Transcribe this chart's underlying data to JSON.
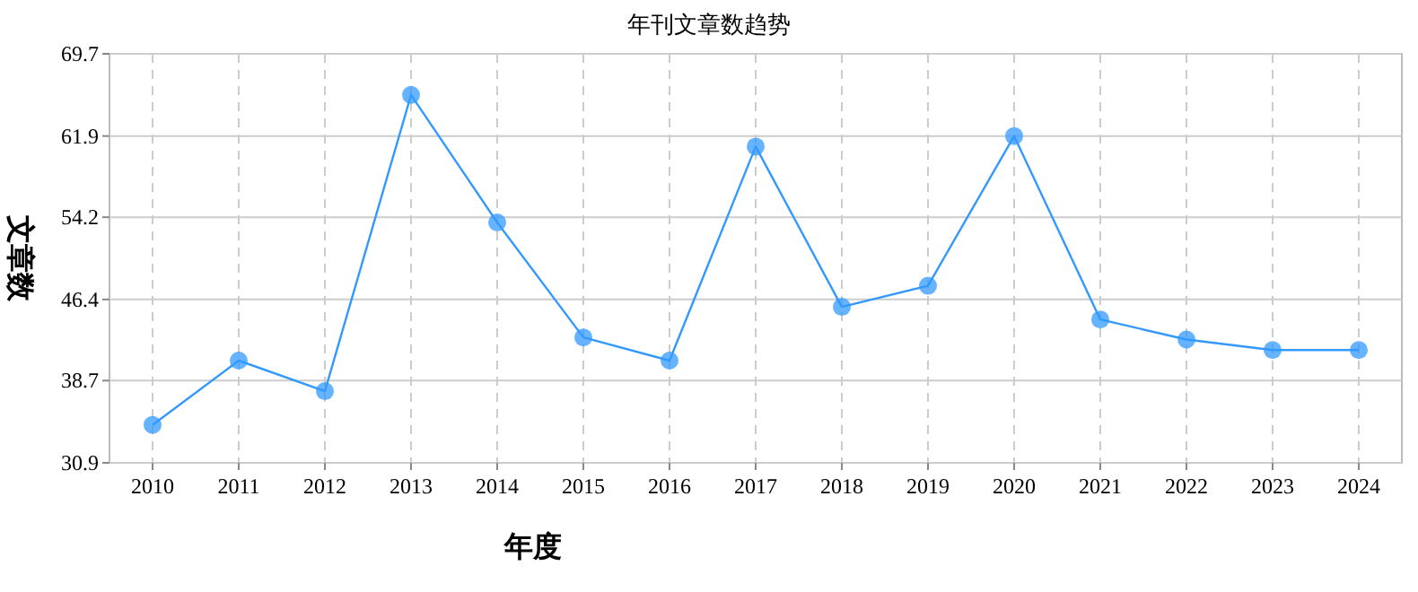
{
  "chart_data": {
    "type": "line",
    "title": "年刊文章数趋势",
    "xlabel": "年度",
    "ylabel": "文章数",
    "categories": [
      "2010",
      "2011",
      "2012",
      "2013",
      "2014",
      "2015",
      "2016",
      "2017",
      "2018",
      "2019",
      "2020",
      "2021",
      "2022",
      "2023",
      "2024"
    ],
    "series": [
      {
        "color": "#3399ff",
        "values": [
          34.5,
          40.6,
          37.7,
          65.8,
          53.7,
          42.8,
          40.6,
          60.9,
          45.7,
          47.7,
          61.9,
          44.5,
          42.6,
          41.6,
          41.6
        ]
      }
    ],
    "ylim": [
      30.9,
      69.7
    ],
    "yticks": [
      30.9,
      38.7,
      46.4,
      54.2,
      61.9,
      69.7
    ],
    "grid": true,
    "marker": "circle",
    "line_style": "solid"
  }
}
